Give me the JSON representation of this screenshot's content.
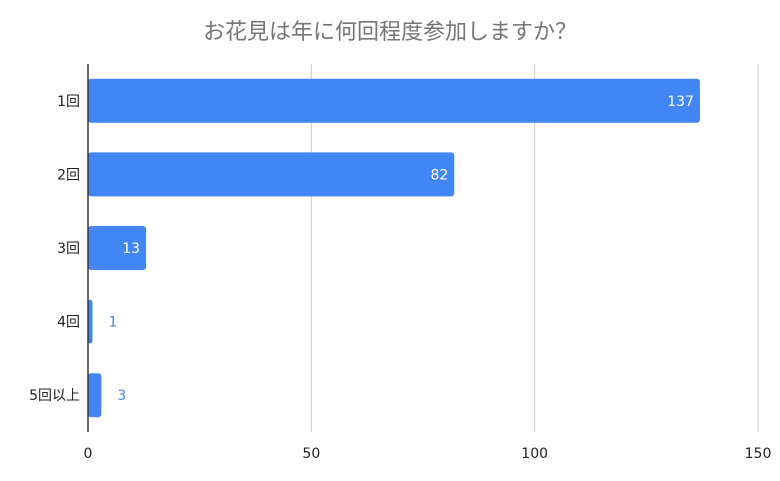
{
  "chart_data": {
    "type": "bar",
    "orientation": "horizontal",
    "title": "お花見は年に何回程度参加しますか？",
    "categories": [
      "1回",
      "2回",
      "3回",
      "4回",
      "5回以上"
    ],
    "values": [
      137,
      82,
      13,
      1,
      3
    ],
    "data_labels": [
      "137",
      "82",
      "13",
      "1",
      "3"
    ],
    "xlim": [
      0,
      150
    ],
    "x_ticks": [
      0,
      50,
      100,
      150
    ],
    "x_tick_labels": [
      "0",
      "50",
      "100",
      "150"
    ],
    "grid": true,
    "legend": "none",
    "xlabel": "",
    "ylabel": ""
  },
  "colors": {
    "bar": "#4285f4",
    "label_inside": "#ffffff",
    "label_outside": "#4285f4",
    "grid": "#cccccc",
    "axis": "#333333",
    "title": "#757575"
  }
}
